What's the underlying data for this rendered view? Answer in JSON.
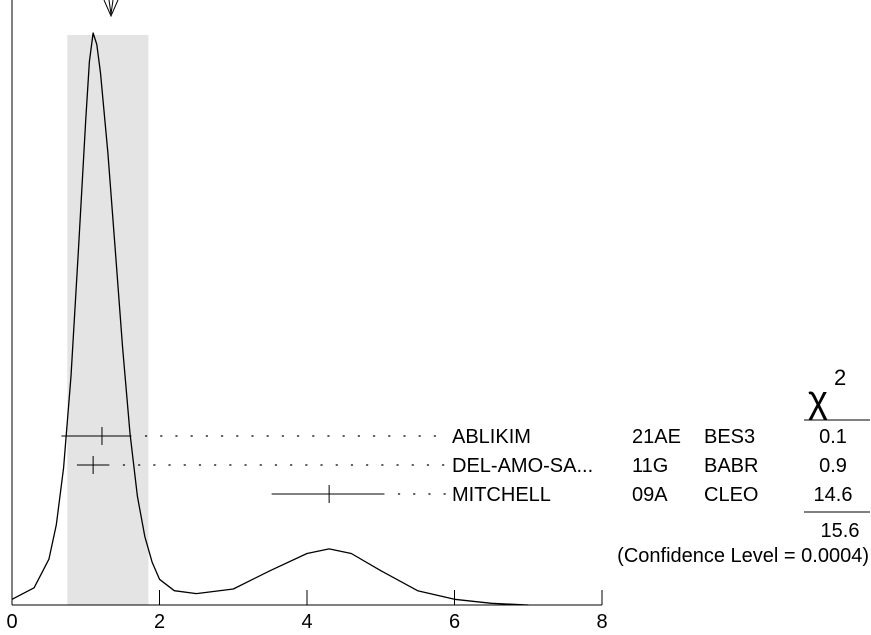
{
  "chart_data": {
    "type": "ideogram",
    "xlim": [
      0,
      8
    ],
    "x_ticks": [
      0,
      2,
      4,
      6,
      8
    ],
    "weighted_average": {
      "value": 1.3,
      "scaled_error": 0.55,
      "band": [
        0.75,
        1.85
      ]
    },
    "chi2_header": "χ",
    "chi2_superscript": "2",
    "measurements": [
      {
        "author": "ABLIKIM",
        "ref": "21AE",
        "experiment": "BES3",
        "chi2": "0.1",
        "value": 1.22,
        "err_low": 0.55,
        "err_high": 0.4
      },
      {
        "author": "DEL-AMO-SA...",
        "ref": "11G",
        "experiment": "BABR",
        "chi2": "0.9",
        "value": 1.1,
        "err_low": 0.22,
        "err_high": 0.22
      },
      {
        "author": "MITCHELL",
        "ref": "09A",
        "experiment": "CLEO",
        "chi2": "14.6",
        "value": 4.3,
        "err_low": 0.78,
        "err_high": 0.75
      }
    ],
    "chi2_total": "15.6",
    "confidence_level_text": "(Confidence Level = 0.0004)",
    "ideogram_curve": [
      [
        0.0,
        0.01
      ],
      [
        0.3,
        0.03
      ],
      [
        0.5,
        0.08
      ],
      [
        0.6,
        0.14
      ],
      [
        0.7,
        0.24
      ],
      [
        0.8,
        0.4
      ],
      [
        0.9,
        0.62
      ],
      [
        1.0,
        0.85
      ],
      [
        1.05,
        0.95
      ],
      [
        1.1,
        1.0
      ],
      [
        1.15,
        0.98
      ],
      [
        1.2,
        0.93
      ],
      [
        1.3,
        0.79
      ],
      [
        1.4,
        0.62
      ],
      [
        1.5,
        0.45
      ],
      [
        1.6,
        0.3
      ],
      [
        1.7,
        0.19
      ],
      [
        1.8,
        0.12
      ],
      [
        1.9,
        0.075
      ],
      [
        2.0,
        0.045
      ],
      [
        2.2,
        0.025
      ],
      [
        2.5,
        0.02
      ],
      [
        3.0,
        0.028
      ],
      [
        3.5,
        0.06
      ],
      [
        4.0,
        0.09
      ],
      [
        4.3,
        0.098
      ],
      [
        4.6,
        0.09
      ],
      [
        5.0,
        0.06
      ],
      [
        5.5,
        0.025
      ],
      [
        6.0,
        0.01
      ],
      [
        6.5,
        0.003
      ],
      [
        7.0,
        0.0
      ]
    ]
  }
}
